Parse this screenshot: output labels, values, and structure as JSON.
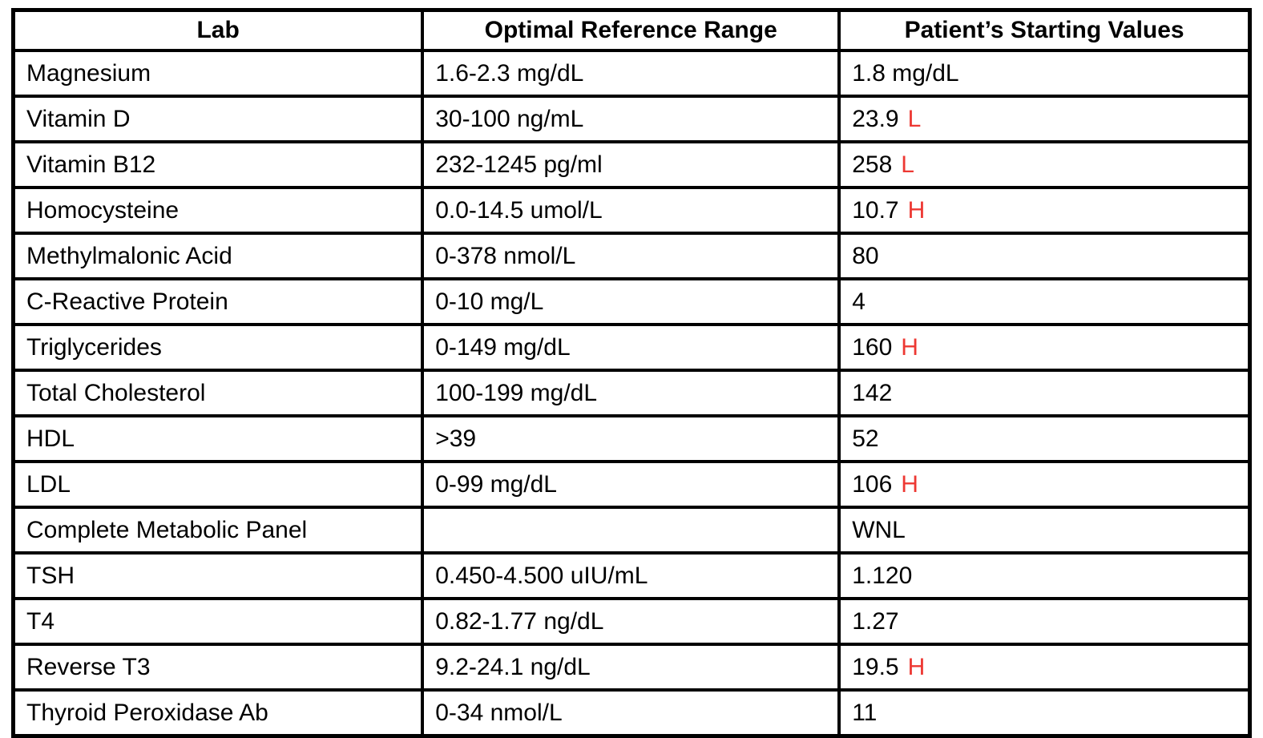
{
  "table": {
    "flag_color": "#ED3833",
    "columns": {
      "lab": "Lab",
      "range": "Optimal Reference Range",
      "value": "Patient’s Starting Values"
    },
    "rows": [
      {
        "lab": "Magnesium",
        "range": "1.6-2.3 mg/dL",
        "value": "1.8 mg/dL",
        "flag": ""
      },
      {
        "lab": "Vitamin D",
        "range": "30-100 ng/mL",
        "value": "23.9",
        "flag": "L"
      },
      {
        "lab": "Vitamin B12",
        "range": "232-1245 pg/ml",
        "value": "258",
        "flag": "L"
      },
      {
        "lab": "Homocysteine",
        "range": "0.0-14.5 umol/L",
        "value": "10.7",
        "flag": "H"
      },
      {
        "lab": "Methylmalonic Acid",
        "range": "0-378 nmol/L",
        "value": "80",
        "flag": ""
      },
      {
        "lab": "C-Reactive Protein",
        "range": "0-10 mg/L",
        "value": "4",
        "flag": ""
      },
      {
        "lab": "Triglycerides",
        "range": "0-149 mg/dL",
        "value": "160",
        "flag": "H"
      },
      {
        "lab": "Total Cholesterol",
        "range": "100-199 mg/dL",
        "value": "142",
        "flag": ""
      },
      {
        "lab": "HDL",
        "range": ">39",
        "value": "52",
        "flag": ""
      },
      {
        "lab": "LDL",
        "range": "0-99 mg/dL",
        "value": "106",
        "flag": "H"
      },
      {
        "lab": "Complete Metabolic Panel",
        "range": "",
        "value": "WNL",
        "flag": ""
      },
      {
        "lab": "TSH",
        "range": "0.450-4.500 uIU/mL",
        "value": "1.120",
        "flag": ""
      },
      {
        "lab": "T4",
        "range": "0.82-1.77 ng/dL",
        "value": "1.27",
        "flag": ""
      },
      {
        "lab": "Reverse T3",
        "range": "9.2-24.1 ng/dL",
        "value": "19.5",
        "flag": "H"
      },
      {
        "lab": "Thyroid Peroxidase Ab",
        "range": "0-34 nmol/L",
        "value": "11",
        "flag": ""
      }
    ]
  }
}
